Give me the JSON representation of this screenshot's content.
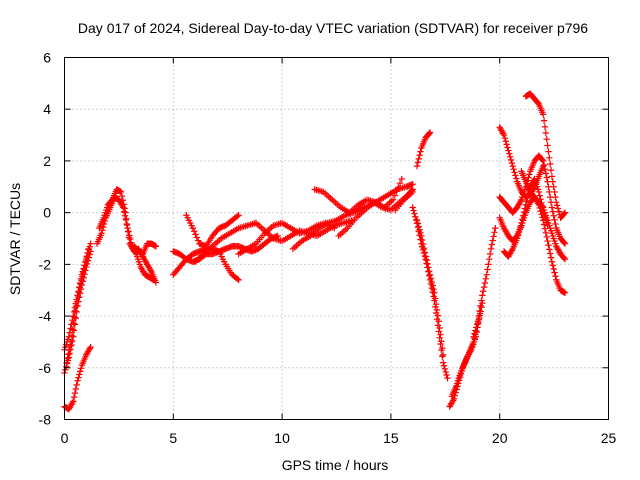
{
  "chart_data": {
    "type": "scatter",
    "title": "Day 017 of 2024, Sidereal Day-to-day VTEC variation (SDTVAR) for receiver p796",
    "xlabel": "GPS time / hours",
    "ylabel": "SDTVAR / TECUs",
    "xlim": [
      0,
      25
    ],
    "ylim": [
      -8,
      6
    ],
    "x_ticks": [
      0,
      5,
      10,
      15,
      20,
      25
    ],
    "y_ticks": [
      -8,
      -6,
      -4,
      -2,
      0,
      2,
      4,
      6
    ],
    "grid": true,
    "marker": "+",
    "series": [
      {
        "name": "SDTVAR",
        "color": "#ff0000",
        "tracks": [
          {
            "x": [
              0.0,
              0.2,
              0.4,
              0.6,
              0.8,
              1.0,
              1.2
            ],
            "y": [
              -5.3,
              -4.8,
              -4.0,
              -3.2,
              -2.4,
              -1.8,
              -1.2
            ]
          },
          {
            "x": [
              0.0,
              0.2,
              0.4,
              0.6,
              0.8,
              1.0,
              1.2
            ],
            "y": [
              -6.2,
              -5.6,
              -4.8,
              -3.6,
              -2.8,
              -2.1,
              -1.5
            ]
          },
          {
            "x": [
              0.1,
              0.3,
              0.5,
              0.7,
              0.9,
              1.1
            ],
            "y": [
              -5.8,
              -5.0,
              -3.8,
              -2.9,
              -2.2,
              -1.4
            ]
          },
          {
            "x": [
              0.0,
              0.2,
              0.4,
              0.6,
              0.8,
              1.0,
              1.2
            ],
            "y": [
              -7.5,
              -7.6,
              -7.3,
              -6.5,
              -5.9,
              -5.5,
              -5.2
            ]
          },
          {
            "x": [
              1.5,
              1.7,
              1.9,
              2.1,
              2.3,
              2.5,
              2.7,
              2.9,
              3.1,
              3.3,
              3.5,
              3.7,
              3.9,
              4.1
            ],
            "y": [
              -1.2,
              -0.8,
              -0.2,
              0.2,
              0.6,
              0.5,
              0.2,
              -0.6,
              -1.3,
              -1.6,
              -2.1,
              -2.4,
              -2.5,
              -2.6
            ]
          },
          {
            "x": [
              1.6,
              1.8,
              2.0,
              2.2,
              2.4,
              2.6,
              2.8,
              3.0,
              3.2,
              3.4,
              3.6,
              3.8,
              4.0,
              4.2
            ],
            "y": [
              -0.6,
              -0.2,
              0.3,
              0.5,
              0.9,
              0.8,
              0.0,
              -1.2,
              -1.5,
              -1.4,
              -1.7,
              -2.0,
              -2.3,
              -2.7
            ]
          },
          {
            "x": [
              3.2,
              3.4,
              3.6,
              3.8,
              4.0,
              4.2
            ],
            "y": [
              -1.3,
              -1.5,
              -1.6,
              -1.2,
              -1.2,
              -1.3
            ]
          },
          {
            "x": [
              5.0,
              5.3,
              5.6,
              5.9,
              6.2,
              6.5,
              6.8,
              7.1,
              7.4,
              7.7,
              8.0
            ],
            "y": [
              -2.4,
              -2.1,
              -1.8,
              -1.6,
              -1.5,
              -1.4,
              -1.4,
              -1.5,
              -2.0,
              -2.4,
              -2.6
            ]
          },
          {
            "x": [
              5.0,
              5.3,
              5.6,
              5.9,
              6.2,
              6.5,
              6.8,
              7.1,
              7.4,
              7.7,
              8.0,
              8.3,
              8.6,
              8.9,
              9.2,
              9.5,
              9.8
            ],
            "y": [
              -1.5,
              -1.6,
              -1.8,
              -1.9,
              -1.8,
              -1.6,
              -1.6,
              -1.5,
              -1.4,
              -1.3,
              -1.3,
              -1.4,
              -1.5,
              -1.4,
              -1.2,
              -1.0,
              -0.9
            ]
          },
          {
            "x": [
              5.6,
              5.9,
              6.2,
              6.5,
              6.8,
              7.1,
              7.4,
              7.7,
              8.0
            ],
            "y": [
              -0.1,
              -0.6,
              -1.2,
              -1.3,
              -0.9,
              -0.6,
              -0.5,
              -0.3,
              -0.1
            ]
          },
          {
            "x": [
              6.0,
              6.4,
              6.8,
              7.2,
              7.6,
              8.0,
              8.4,
              8.8
            ],
            "y": [
              -1.9,
              -1.6,
              -1.3,
              -1.0,
              -0.8,
              -0.6,
              -0.5,
              -0.4
            ]
          },
          {
            "x": [
              8.0,
              8.4,
              8.8,
              9.2,
              9.6,
              10.0,
              10.4,
              10.8,
              11.2,
              11.6,
              12.0,
              12.4
            ],
            "y": [
              -1.6,
              -1.4,
              -1.2,
              -0.8,
              -0.5,
              -0.4,
              -0.6,
              -0.8,
              -0.7,
              -0.5,
              -0.4,
              -0.6
            ]
          },
          {
            "x": [
              8.8,
              9.2,
              9.6,
              10.0,
              10.4,
              10.8,
              11.2,
              11.6,
              12.0,
              12.4,
              12.8,
              13.2
            ],
            "y": [
              -0.4,
              -0.7,
              -1.0,
              -1.1,
              -0.9,
              -0.7,
              -0.8,
              -0.9,
              -0.7,
              -0.5,
              -0.4,
              -0.3
            ]
          },
          {
            "x": [
              10.5,
              10.9,
              11.3,
              11.7,
              12.1,
              12.5,
              12.9,
              13.3,
              13.7,
              14.1,
              14.5,
              14.9,
              15.3,
              15.7,
              16.0
            ],
            "y": [
              -1.4,
              -1.1,
              -0.9,
              -0.6,
              -0.4,
              -0.3,
              -0.1,
              0.0,
              0.2,
              0.3,
              0.5,
              0.7,
              0.9,
              1.0,
              1.1
            ]
          },
          {
            "x": [
              12.6,
              13.0,
              13.4,
              13.8,
              14.2,
              14.6,
              15.0,
              15.4,
              15.8,
              16.0
            ],
            "y": [
              -0.9,
              -0.6,
              -0.2,
              0.1,
              0.4,
              0.2,
              0.1,
              0.4,
              0.7,
              0.9
            ]
          },
          {
            "x": [
              11.5,
              11.9,
              12.3,
              12.7,
              13.1,
              13.5,
              13.9,
              14.3,
              14.7,
              15.1,
              15.5
            ],
            "y": [
              0.9,
              0.8,
              0.5,
              0.2,
              0.0,
              0.3,
              0.5,
              0.4,
              0.2,
              0.5,
              1.3
            ]
          },
          {
            "x": [
              15.2,
              15.6,
              16.0
            ],
            "y": [
              0.1,
              0.5,
              0.8
            ]
          },
          {
            "x": [
              16.2,
              16.4,
              16.6,
              16.8
            ],
            "y": [
              1.8,
              2.5,
              2.9,
              3.1
            ]
          },
          {
            "x": [
              16.0,
              16.2,
              16.4,
              16.6,
              16.8,
              17.0,
              17.2,
              17.4,
              17.6
            ],
            "y": [
              0.2,
              -0.4,
              -1.2,
              -1.8,
              -2.6,
              -3.4,
              -4.6,
              -5.8,
              -6.4
            ]
          },
          {
            "x": [
              16.2,
              16.4,
              16.6,
              16.8,
              17.0,
              17.2,
              17.4
            ],
            "y": [
              -0.3,
              -0.9,
              -1.7,
              -2.4,
              -3.1,
              -4.2,
              -5.5
            ]
          },
          {
            "x": [
              17.8,
              18.0,
              18.2,
              18.4,
              18.6,
              18.8,
              19.0,
              19.2
            ],
            "y": [
              -7.1,
              -6.7,
              -6.2,
              -5.8,
              -5.4,
              -5.0,
              -4.3,
              -3.5
            ]
          },
          {
            "x": [
              17.7,
              17.9,
              18.1,
              18.3,
              18.5,
              18.7,
              18.9,
              19.1
            ],
            "y": [
              -7.5,
              -7.2,
              -6.6,
              -6.0,
              -5.6,
              -5.3,
              -4.8,
              -3.9
            ]
          },
          {
            "x": [
              18.8,
              19.0,
              19.2,
              19.4,
              19.6,
              19.8
            ],
            "y": [
              -4.8,
              -4.2,
              -3.2,
              -2.4,
              -1.4,
              -0.6
            ]
          },
          {
            "x": [
              20.0,
              20.2,
              20.4,
              20.6,
              20.8,
              21.0,
              21.2,
              21.4,
              21.6,
              21.8,
              22.0
            ],
            "y": [
              3.3,
              3.0,
              2.4,
              1.8,
              1.2,
              0.8,
              0.6,
              0.7,
              1.0,
              1.4,
              1.8
            ]
          },
          {
            "x": [
              21.2,
              21.4,
              21.6,
              21.8,
              22.0,
              22.2,
              22.4,
              22.6,
              22.8,
              23.0
            ],
            "y": [
              4.5,
              4.6,
              4.4,
              4.2,
              3.8,
              2.6,
              1.4,
              0.4,
              -0.2,
              0.0
            ]
          },
          {
            "x": [
              20.0,
              20.2,
              20.4,
              20.6,
              20.8,
              21.0,
              21.2,
              21.4,
              21.6,
              21.8,
              22.0,
              22.2,
              22.4,
              22.6,
              22.8,
              23.0
            ],
            "y": [
              0.6,
              0.4,
              0.2,
              0.0,
              0.2,
              0.5,
              1.0,
              1.6,
              2.0,
              2.2,
              2.0,
              1.2,
              0.2,
              -0.6,
              -1.0,
              -1.2
            ]
          },
          {
            "x": [
              20.0,
              20.2,
              20.4,
              20.6,
              20.8,
              21.0,
              21.2,
              21.4,
              21.6,
              21.8,
              22.0,
              22.2,
              22.4,
              22.6,
              22.8,
              23.0
            ],
            "y": [
              -0.2,
              -0.6,
              -0.9,
              -1.1,
              -0.9,
              -0.5,
              0.0,
              0.4,
              0.6,
              0.3,
              -0.3,
              -1.1,
              -1.9,
              -2.6,
              -3.0,
              -3.1
            ]
          },
          {
            "x": [
              20.2,
              20.4,
              20.6,
              20.8,
              21.0,
              21.2,
              21.4,
              21.6,
              21.8,
              22.0,
              22.2
            ],
            "y": [
              -1.5,
              -1.7,
              -1.4,
              -1.0,
              -0.4,
              0.3,
              1.0,
              1.3,
              0.8,
              0.1,
              -0.5
            ]
          },
          {
            "x": [
              21.0,
              21.2,
              21.4,
              21.6,
              21.8,
              22.0,
              22.2,
              22.4,
              22.6,
              22.8,
              23.0
            ],
            "y": [
              1.6,
              1.2,
              0.8,
              0.6,
              0.4,
              0.2,
              -0.3,
              -0.8,
              -1.3,
              -1.6,
              -1.8
            ]
          }
        ]
      }
    ]
  }
}
